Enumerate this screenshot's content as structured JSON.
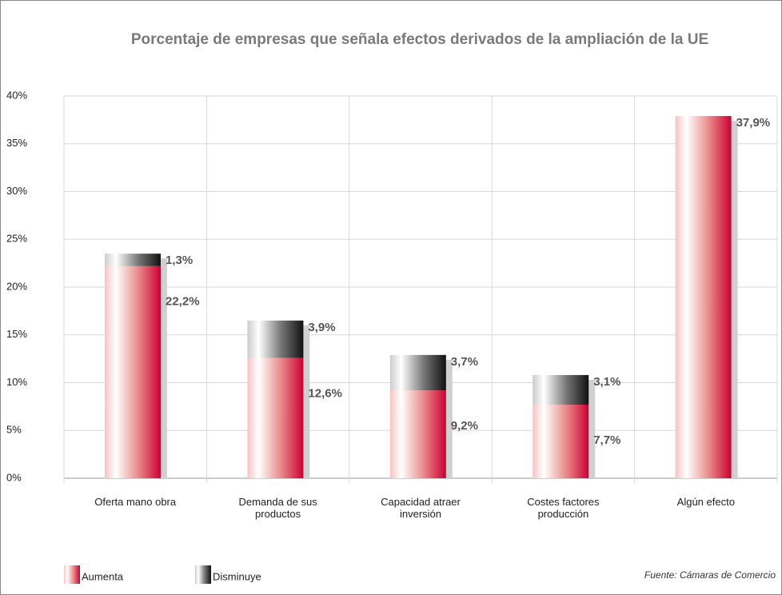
{
  "chart_data": {
    "type": "stacked_bar",
    "title": "Porcentaje de empresas que señala efectos derivados de la ampliación de la UE",
    "categories": [
      "Oferta mano obra",
      "Demanda de sus productos",
      "Capacidad atraer inversión",
      "Costes factores producción",
      "Algún efecto"
    ],
    "series": [
      {
        "name": "Aumenta",
        "color": "#cc0033",
        "values": [
          22.2,
          12.6,
          9.2,
          7.7,
          37.9
        ],
        "value_labels": [
          "22,2%",
          "12,6%",
          "9,2%",
          "7,7%",
          "37,9%"
        ]
      },
      {
        "name": "Disminuye",
        "color": "#111111",
        "values": [
          1.3,
          3.9,
          3.7,
          3.1,
          null
        ],
        "value_labels": [
          "1,3%",
          "3,9%",
          "3,7%",
          "3,1%",
          null
        ]
      }
    ],
    "ylim": [
      0,
      40
    ],
    "yticks": [
      {
        "value": 0,
        "label": "0%"
      },
      {
        "value": 5,
        "label": "5%"
      },
      {
        "value": 10,
        "label": "10%"
      },
      {
        "value": 15,
        "label": "15%"
      },
      {
        "value": 20,
        "label": "20%"
      },
      {
        "value": 25,
        "label": "25%"
      },
      {
        "value": 30,
        "label": "30%"
      },
      {
        "value": 35,
        "label": "35%"
      },
      {
        "value": 40,
        "label": "40%"
      }
    ],
    "grid": true,
    "source": "Fuente: Cámaras de Comercio"
  }
}
